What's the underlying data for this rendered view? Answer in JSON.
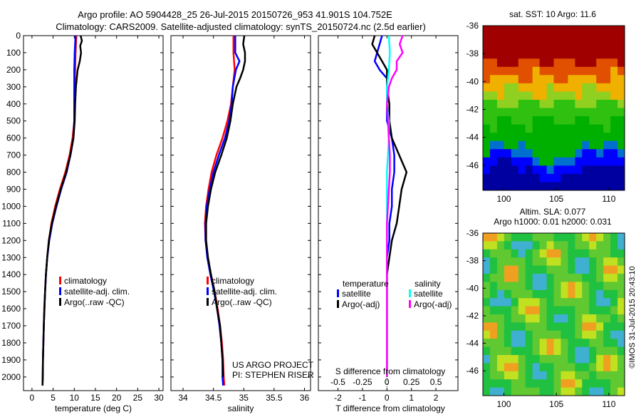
{
  "header": {
    "title_line1": "Argo profile: AO 5904428_25 26-Jul-2015 20150726_953 41.901S 104.752E",
    "title_line2": "Climatology: CARS2009. Satellite-adjusted climatology: synTS_20150724.nc (2.5d earlier)"
  },
  "colors": {
    "climatology": "#ff0000",
    "satellite_adj": "#0000ff",
    "argo": "#000000",
    "sal_satellite": "#00ffff",
    "sal_argo": "#ff00ff"
  },
  "sidebar_stamp": "©IMOS 31-Jul-2015 20:43:10",
  "chart_data": [
    {
      "type": "line",
      "panel": "temperature",
      "xlabel": "temperature (deg C)",
      "xlim": [
        -2,
        31
      ],
      "xticks": [
        "0",
        "5",
        "10",
        "15",
        "20",
        "25",
        "30"
      ],
      "ylim": [
        0,
        2080
      ],
      "yticks": [
        "0",
        "100",
        "200",
        "300",
        "400",
        "500",
        "600",
        "700",
        "800",
        "900",
        "1000",
        "1100",
        "1200",
        "1300",
        "1400",
        "1500",
        "1600",
        "1700",
        "1800",
        "1900",
        "2000"
      ],
      "grid": false,
      "legend_position": "lower-center",
      "series": [
        {
          "name": "climatology",
          "color": "#ff0000",
          "depth": [
            0,
            100,
            200,
            300,
            400,
            500,
            600,
            700,
            800,
            900,
            1000,
            1100,
            1200,
            1300,
            1400,
            1500,
            1600,
            1700,
            1800,
            1900,
            2000,
            2050
          ],
          "values": [
            10.5,
            10.3,
            10.2,
            10.1,
            10.0,
            10.0,
            9.6,
            8.9,
            7.9,
            6.6,
            5.5,
            4.6,
            4.0,
            3.6,
            3.3,
            3.1,
            2.9,
            2.8,
            2.7,
            2.6,
            2.55,
            2.5
          ]
        },
        {
          "name": "satellite-adj. clim.",
          "color": "#0000ff",
          "depth": [
            0,
            100,
            200,
            300,
            400,
            500,
            600,
            700,
            800,
            900,
            1000,
            1100,
            1200,
            1300,
            1400,
            1500,
            1600,
            1700,
            1800,
            1900,
            2000,
            2050
          ],
          "values": [
            10.3,
            10.1,
            10.0,
            10.0,
            10.0,
            10.0,
            9.8,
            9.1,
            8.2,
            6.9,
            5.8,
            4.8,
            4.1,
            3.6,
            3.3,
            3.1,
            2.95,
            2.8,
            2.7,
            2.6,
            2.55,
            2.5
          ]
        },
        {
          "name": "Argo(..raw -QC)",
          "color": "#000000",
          "depth": [
            0,
            30,
            60,
            100,
            150,
            200,
            250,
            300,
            400,
            500,
            600,
            700,
            800,
            900,
            1000,
            1100,
            1200,
            1300,
            1400,
            1500,
            1600,
            1700,
            1800,
            1900,
            2000,
            2050
          ],
          "values": [
            11.5,
            11.8,
            11.4,
            11.6,
            11.3,
            10.8,
            10.6,
            10.4,
            10.2,
            10.1,
            9.8,
            9.1,
            8.1,
            6.8,
            5.7,
            4.7,
            4.0,
            3.6,
            3.3,
            3.1,
            2.95,
            2.8,
            2.7,
            2.6,
            2.55,
            2.5
          ]
        }
      ],
      "legend": [
        "climatology",
        "satellite-adj. clim.",
        "Argo(..raw -QC)"
      ]
    },
    {
      "type": "line",
      "panel": "salinity",
      "xlabel": "salinity",
      "xlim": [
        33.8,
        36.1
      ],
      "xticks": [
        "34",
        "34.5",
        "35",
        "35.5",
        "36"
      ],
      "ylim": [
        0,
        2080
      ],
      "grid": false,
      "legend_position": "lower-center",
      "annotation_line1": "US ARGO PROJECT",
      "annotation_line2": "PI: STEPHEN RISER",
      "series": [
        {
          "name": "climatology",
          "color": "#ff0000",
          "depth": [
            0,
            100,
            200,
            300,
            400,
            500,
            600,
            700,
            800,
            900,
            1000,
            1100,
            1200,
            1300,
            1400,
            1500,
            1600,
            1700,
            1800,
            1900,
            2000,
            2050
          ],
          "values": [
            34.83,
            34.83,
            34.85,
            34.82,
            34.79,
            34.73,
            34.65,
            34.55,
            34.47,
            34.42,
            34.38,
            34.36,
            34.37,
            34.41,
            34.46,
            34.52,
            34.57,
            34.61,
            34.64,
            34.66,
            34.67,
            34.68
          ]
        },
        {
          "name": "satellite-adj. clim.",
          "color": "#0000ff",
          "depth": [
            0,
            100,
            150,
            200,
            300,
            400,
            500,
            600,
            700,
            800,
            900,
            1000,
            1100,
            1200,
            1300,
            1400,
            1500,
            1600,
            1700,
            1800,
            1900,
            2000,
            2050
          ],
          "values": [
            34.86,
            34.86,
            34.93,
            34.87,
            34.82,
            34.8,
            34.76,
            34.69,
            34.59,
            34.5,
            34.44,
            34.39,
            34.37,
            34.37,
            34.4,
            34.45,
            34.51,
            34.56,
            34.6,
            34.63,
            34.65,
            34.65,
            34.66
          ]
        },
        {
          "name": "Argo(..raw -QC)",
          "color": "#000000",
          "depth": [
            0,
            50,
            100,
            150,
            200,
            250,
            300,
            400,
            500,
            600,
            700,
            800,
            900,
            1000,
            1100,
            1200,
            1300,
            1400,
            1500,
            1600,
            1700,
            1800,
            1900,
            2000
          ],
          "values": [
            35.01,
            34.99,
            35.02,
            35.02,
            34.99,
            34.94,
            34.88,
            34.82,
            34.78,
            34.72,
            34.63,
            34.53,
            34.46,
            34.41,
            34.38,
            34.38,
            34.41,
            34.46,
            34.52,
            34.56,
            34.61,
            34.63,
            34.65,
            34.66
          ]
        }
      ],
      "legend": [
        "climatology",
        "satellite-adj. clim.",
        "Argo(..raw -QC)"
      ]
    },
    {
      "type": "line",
      "panel": "difference",
      "xlabel": "T difference from climatology",
      "xlim": [
        -2.8,
        2.9
      ],
      "xticks": [
        "-2",
        "-1",
        "0",
        "1",
        "2"
      ],
      "top_axis_label": "S difference from climatology",
      "top_xlim": [
        -0.7,
        0.725
      ],
      "top_xticks": [
        "-0.5",
        "-0.25",
        "0",
        "0.25",
        "0.5"
      ],
      "ylim": [
        0,
        2080
      ],
      "grid": false,
      "legend_position": "lower-center",
      "legend_headers": [
        "temperature",
        "salinity"
      ],
      "series": [
        {
          "name": "satellite",
          "group": "temperature",
          "color": "#0000ff",
          "depth": [
            0,
            50,
            100,
            150,
            200,
            250,
            300,
            400,
            500,
            600,
            700,
            800,
            900,
            1000,
            1100,
            1200,
            1300,
            1400,
            1500,
            1600,
            1700,
            1800,
            1900,
            2000
          ],
          "values": [
            -0.2,
            -0.3,
            -0.4,
            -0.5,
            -0.3,
            0.0,
            0.0,
            0.0,
            0.0,
            0.2,
            0.3,
            0.3,
            0.2,
            0.2,
            0.1,
            0.1,
            0.0,
            0.0,
            0.0,
            0.0,
            0.0,
            0.0,
            0.0,
            0.0
          ]
        },
        {
          "name": "Argo(-adj)",
          "group": "temperature",
          "color": "#000000",
          "depth": [
            0,
            50,
            100,
            150,
            200,
            300,
            400,
            500,
            600,
            700,
            800,
            900,
            1000,
            1100,
            1200,
            1300,
            1400,
            1500,
            1600,
            1700,
            1800,
            1900,
            2000
          ],
          "values": [
            -0.5,
            -0.6,
            -0.4,
            -0.2,
            0.0,
            0.0,
            0.1,
            0.1,
            0.2,
            0.5,
            0.8,
            0.6,
            0.5,
            0.4,
            0.2,
            0.1,
            0.0,
            0.0,
            0.0,
            0.0,
            0.0,
            0.0,
            0.0
          ]
        },
        {
          "name": "satellite",
          "group": "salinity",
          "color": "#00ffff",
          "depth": [
            0,
            100,
            200,
            300,
            400,
            500,
            600,
            700,
            800,
            900,
            1000,
            1100,
            1200,
            1300,
            1400,
            1500,
            1600,
            1700,
            1800,
            1900,
            2000
          ],
          "values": [
            0.02,
            0.03,
            0.02,
            0.0,
            0.0,
            0.02,
            0.02,
            0.01,
            0.0,
            0.0,
            0.0,
            0.0,
            0.0,
            0.0,
            0.0,
            0.0,
            0.0,
            0.0,
            0.0,
            0.0,
            0.0
          ]
        },
        {
          "name": "Argo(-adj)",
          "group": "salinity",
          "color": "#ff00ff",
          "depth": [
            0,
            50,
            100,
            150,
            200,
            250,
            300,
            400,
            500,
            600,
            700,
            800,
            900,
            1000,
            1100,
            1200,
            1300,
            1400,
            1500,
            1600,
            1700,
            1800,
            1900,
            2000
          ],
          "values": [
            0.16,
            0.13,
            0.16,
            0.1,
            0.1,
            0.05,
            0.02,
            0.0,
            0.01,
            0.02,
            0.03,
            0.03,
            0.02,
            0.01,
            0.0,
            0.0,
            0.0,
            0.0,
            0.0,
            0.0,
            0.0,
            0.0,
            0.0,
            0.0
          ]
        }
      ]
    },
    {
      "type": "heatmap",
      "panel": "sst_map",
      "title": "sat. SST: 10 Argo: 11.6",
      "xlim": [
        98,
        111.5
      ],
      "ylim": [
        -47.8,
        -36
      ],
      "xticks": [
        "100",
        "105",
        "110"
      ],
      "yticks": [
        "-36",
        "-38",
        "-40",
        "-42",
        "-44",
        "-46"
      ]
    },
    {
      "type": "heatmap",
      "panel": "sla_map",
      "title_line1": "Altim. SLA: 0.077",
      "title_line2": "Argo h1000: 0.01 h2000: 0.031",
      "xlim": [
        98,
        111.5
      ],
      "ylim": [
        -47.8,
        -36
      ],
      "xticks": [
        "100",
        "105",
        "110"
      ],
      "yticks": [
        "-36",
        "-38",
        "-40",
        "-42",
        "-44",
        "-46"
      ]
    }
  ]
}
